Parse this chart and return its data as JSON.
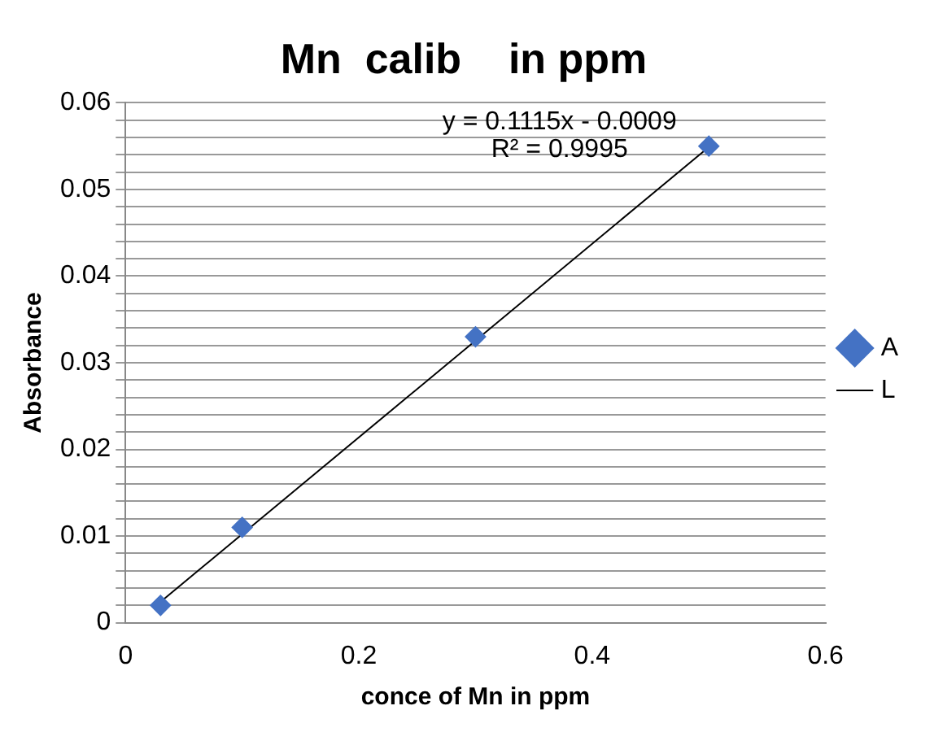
{
  "chart_data": {
    "type": "scatter",
    "title": "Mn  calib    in ppm",
    "xlabel": "conce of Mn in ppm",
    "ylabel": "Absorbance",
    "series": [
      {
        "name": "A",
        "marker": "diamond",
        "color": "#4472c4",
        "x": [
          0.03,
          0.1,
          0.3,
          0.5
        ],
        "values": [
          0.002,
          0.011,
          0.033,
          0.055
        ]
      },
      {
        "name": "L",
        "type": "line",
        "marker": "none",
        "color": "#000000",
        "x": [
          0.03,
          0.5
        ],
        "values": [
          0.0024,
          0.0549
        ]
      }
    ],
    "annotations": [
      "y = 0.1115x - 0.0009",
      "R² = 0.9995"
    ],
    "xlim": [
      0,
      0.6
    ],
    "xticks": [
      0,
      0.2,
      0.4,
      0.6
    ],
    "ylim": [
      0,
      0.06
    ],
    "yticks": [
      0,
      {
        "value": 0.002,
        "label": null
      },
      {
        "value": 0.004,
        "label": null
      },
      {
        "value": 0.006,
        "label": null
      },
      {
        "value": 0.008,
        "label": null
      },
      0.01,
      {
        "value": 0.012,
        "label": null
      },
      {
        "value": 0.014,
        "label": null
      },
      {
        "value": 0.016,
        "label": null
      },
      {
        "value": 0.018,
        "label": null
      },
      0.02,
      {
        "value": 0.022,
        "label": null
      },
      {
        "value": 0.024,
        "label": null
      },
      {
        "value": 0.026,
        "label": null
      },
      {
        "value": 0.028,
        "label": null
      },
      0.03,
      {
        "value": 0.032,
        "label": null
      },
      {
        "value": 0.034,
        "label": null
      },
      {
        "value": 0.036,
        "label": null
      },
      {
        "value": 0.038,
        "label": null
      },
      0.04,
      {
        "value": 0.042,
        "label": null
      },
      {
        "value": 0.044,
        "label": null
      },
      {
        "value": 0.046,
        "label": null
      },
      {
        "value": 0.048,
        "label": null
      },
      0.05,
      {
        "value": 0.052,
        "label": null
      },
      {
        "value": 0.054,
        "label": null
      },
      {
        "value": 0.056,
        "label": null
      },
      {
        "value": 0.058,
        "label": null
      },
      0.06
    ],
    "grid": "y",
    "legend": "right"
  }
}
